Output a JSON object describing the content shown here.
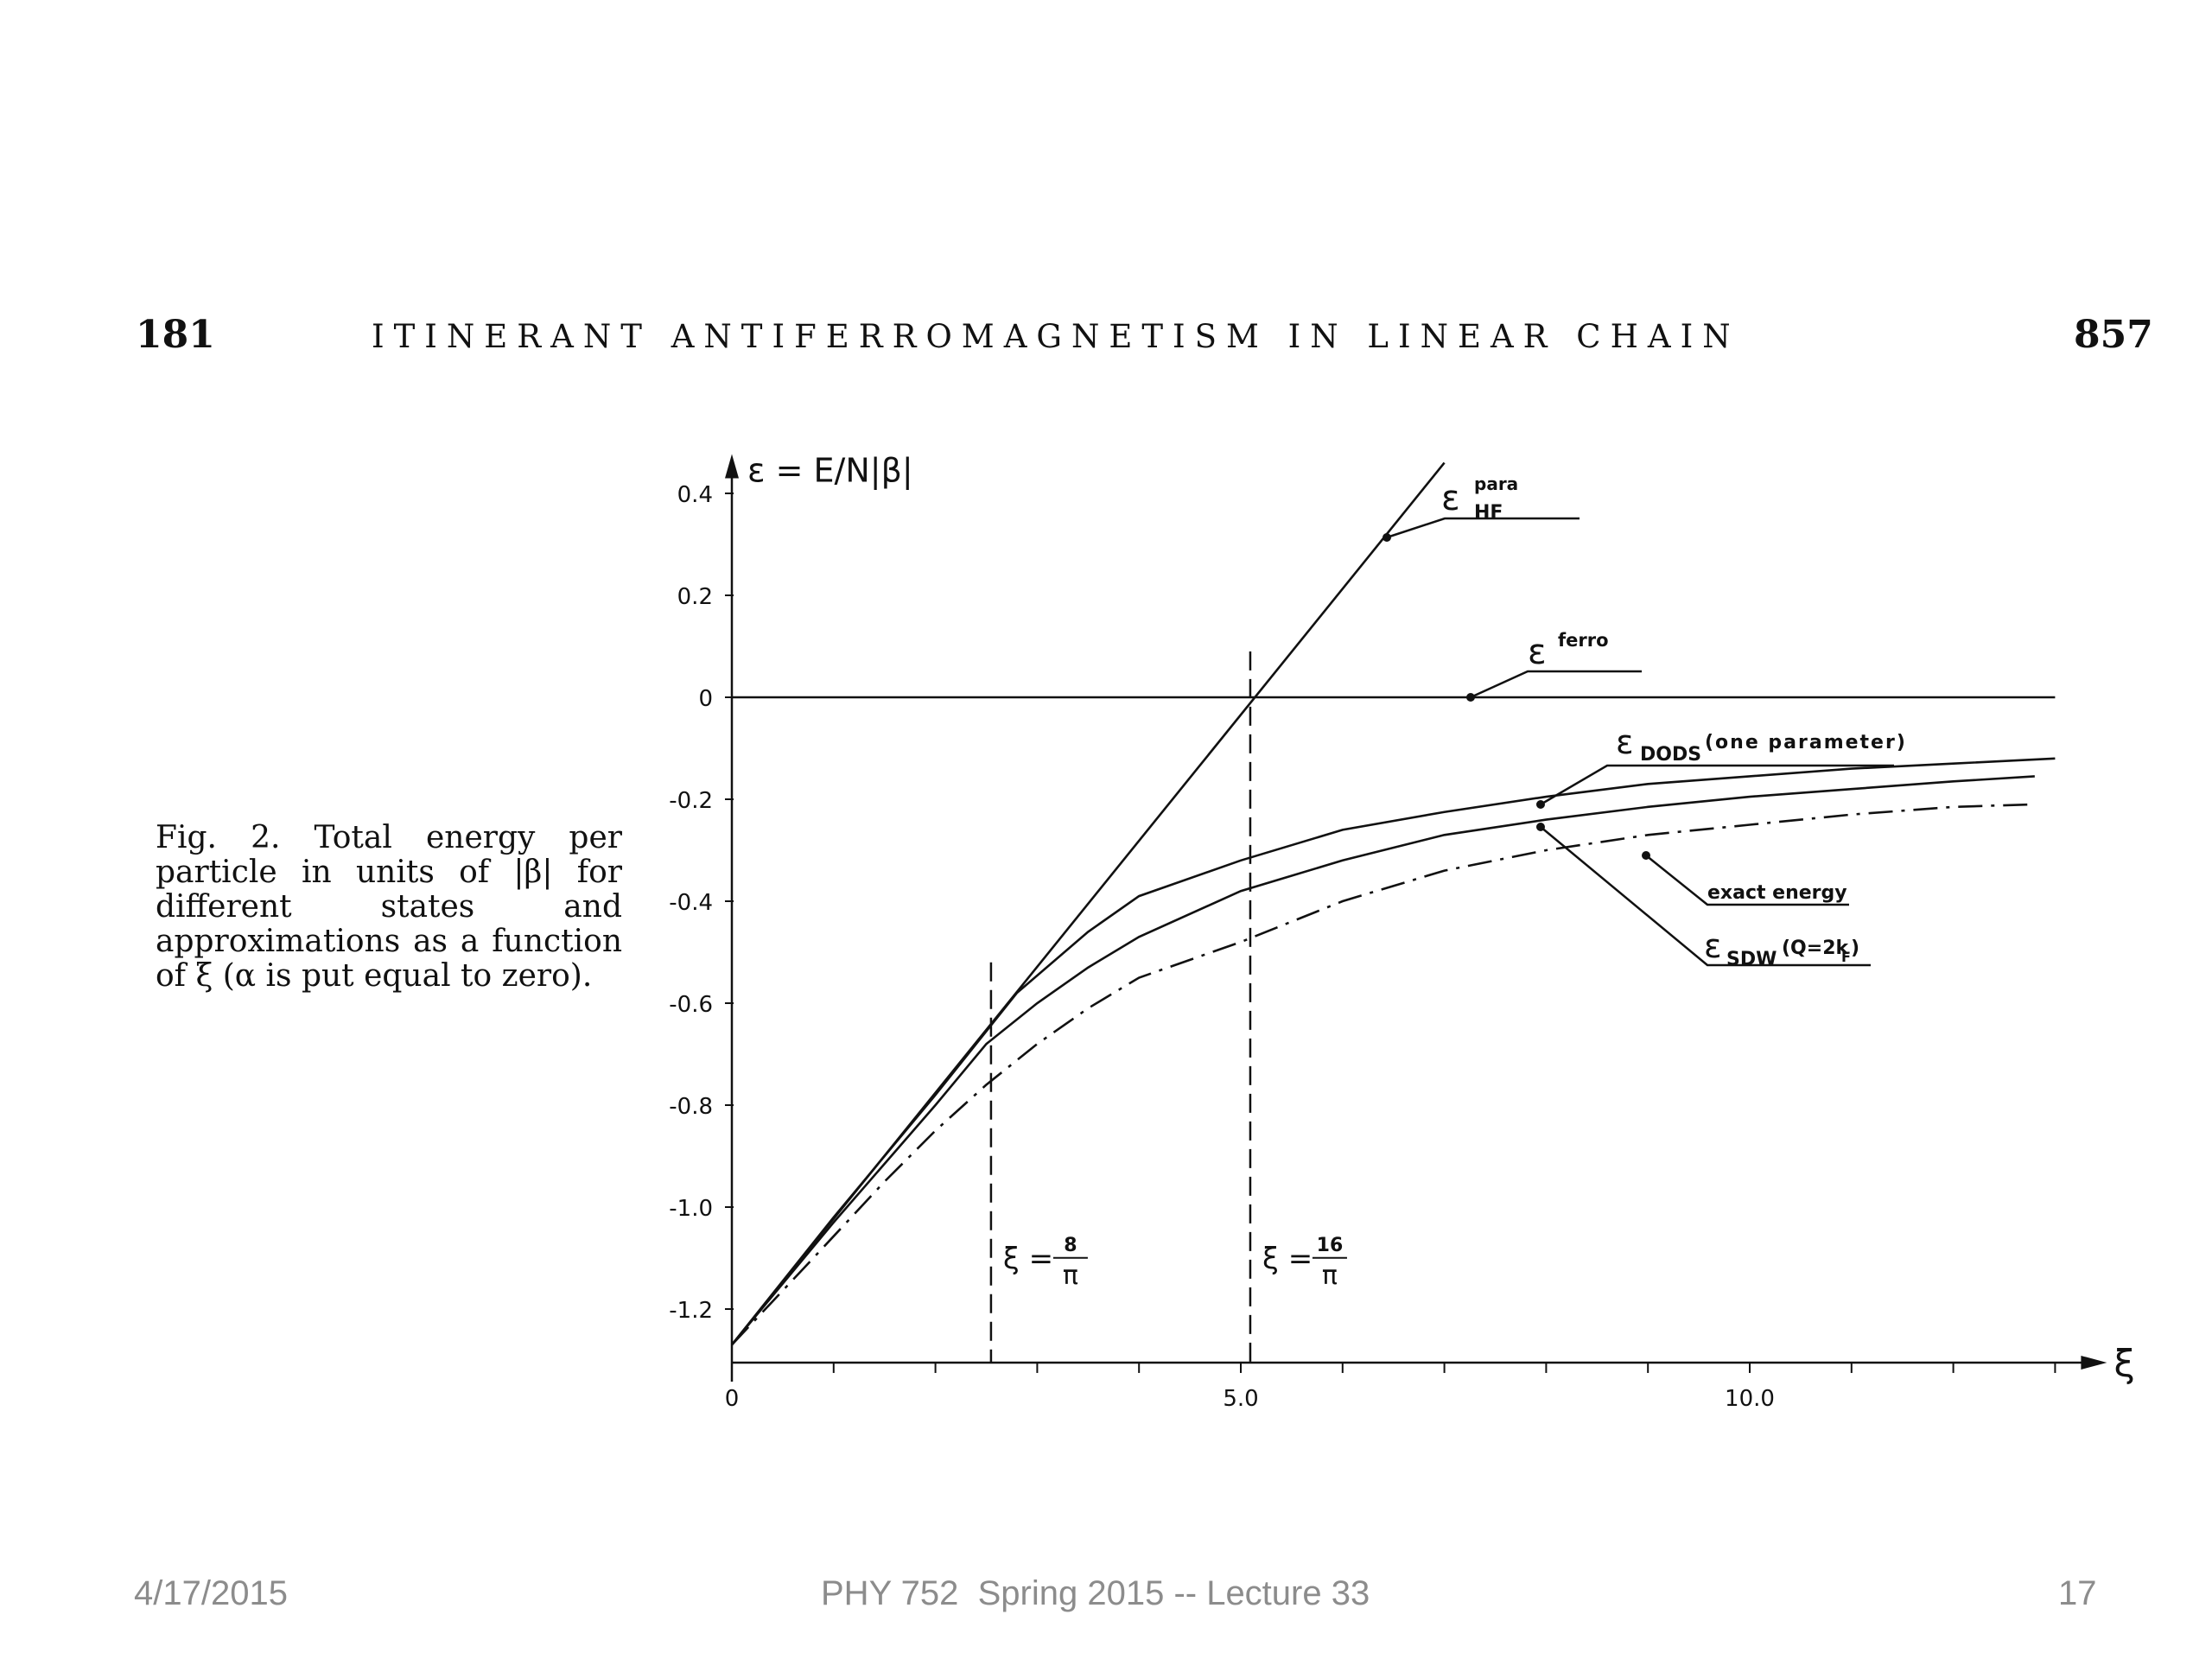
{
  "header": {
    "page_left": "181",
    "running_title": "ITINERANT ANTIFERROMAGNETISM IN LINEAR CHAIN",
    "page_right": "857"
  },
  "caption": "Fig. 2. Total energy per particle in units of |β| for different states and approximations as a function of ξ (α is put equal to zero).",
  "footer": {
    "date": "4/17/2015",
    "center": "PHY 752  Spring 2015 -- Lecture 33",
    "slide_number": "17"
  },
  "chart_data": {
    "type": "line",
    "xlabel": "ξ",
    "ylabel": "ε = E/N|β|",
    "xlim": [
      0,
      13
    ],
    "ylim": [
      -1.3,
      0.45
    ],
    "x_ticks": [
      0,
      1,
      2,
      3,
      4,
      5,
      6,
      7,
      8,
      9,
      10,
      11,
      12,
      13
    ],
    "x_tick_labels": [
      {
        "value": 0,
        "label": "0"
      },
      {
        "value": 5,
        "label": "5.0"
      },
      {
        "value": 10,
        "label": "10.0"
      }
    ],
    "y_ticks": [
      {
        "value": 0.4,
        "label": "0.4"
      },
      {
        "value": 0.2,
        "label": "0.2"
      },
      {
        "value": 0,
        "label": "0"
      },
      {
        "value": -0.2,
        "label": "-0.2"
      },
      {
        "value": -0.4,
        "label": "-0.4"
      },
      {
        "value": -0.6,
        "label": "-0.6"
      },
      {
        "value": -0.8,
        "label": "-0.8"
      },
      {
        "value": -1.0,
        "label": "-1.0"
      },
      {
        "value": -1.2,
        "label": "-1.2"
      }
    ],
    "series": [
      {
        "name": "ε para HF",
        "style": "solid",
        "x": [
          0,
          7
        ],
        "y": [
          -1.27,
          0.46
        ]
      },
      {
        "name": "ε ferro",
        "style": "solid",
        "x": [
          0,
          13
        ],
        "y": [
          0,
          0
        ]
      },
      {
        "name": "ε DODS (one parameter)",
        "style": "solid",
        "x": [
          0,
          1,
          2,
          2.8,
          3.5,
          4,
          5,
          6,
          7,
          8,
          9,
          10,
          11,
          12,
          13
        ],
        "y": [
          -1.27,
          -1.02,
          -0.78,
          -0.58,
          -0.46,
          -0.39,
          -0.32,
          -0.26,
          -0.225,
          -0.195,
          -0.17,
          -0.155,
          -0.14,
          -0.13,
          -0.12
        ]
      },
      {
        "name": "ε SDW (Q=2kF)",
        "style": "solid",
        "x": [
          0,
          1,
          2,
          2.5,
          3,
          3.5,
          4,
          5,
          6,
          7,
          8,
          9,
          10,
          11,
          12,
          12.8
        ],
        "y": [
          -1.27,
          -1.03,
          -0.8,
          -0.68,
          -0.6,
          -0.53,
          -0.47,
          -0.38,
          -0.32,
          -0.27,
          -0.24,
          -0.215,
          -0.195,
          -0.18,
          -0.165,
          -0.155
        ]
      },
      {
        "name": "exact energy",
        "style": "dashdot",
        "x": [
          0,
          0.8,
          1.5,
          2,
          2.5,
          3,
          3.5,
          4,
          5,
          6,
          7,
          8,
          9,
          10,
          11,
          12,
          12.8
        ],
        "y": [
          -1.27,
          -1.1,
          -0.95,
          -0.85,
          -0.76,
          -0.68,
          -0.61,
          -0.55,
          -0.48,
          -0.4,
          -0.34,
          -0.3,
          -0.27,
          -0.25,
          -0.23,
          -0.215,
          -0.21
        ]
      }
    ],
    "markers": [
      {
        "x": 2.546,
        "label_lhs": "ξ =",
        "label_num": "8",
        "label_den": "π"
      },
      {
        "x": 5.093,
        "label_lhs": "ξ =",
        "label_num": "16",
        "label_den": "π"
      }
    ],
    "annotations": {
      "para_main": "ε",
      "para_sup": "para",
      "para_sub": "HF",
      "ferro_main": "ε",
      "ferro_sup": "ferro",
      "dods_main": "ε",
      "dods_sub": "DODS",
      "dods_extra": "(one parameter)",
      "exact": "exact energy",
      "sdw_main": "ε",
      "sdw_sub": "SDW",
      "sdw_extra": "(Q=2k",
      "sdw_extra_sub": "F",
      "sdw_extra_close": ")"
    },
    "colors": {
      "line": "#111111",
      "axis": "#111111"
    }
  }
}
